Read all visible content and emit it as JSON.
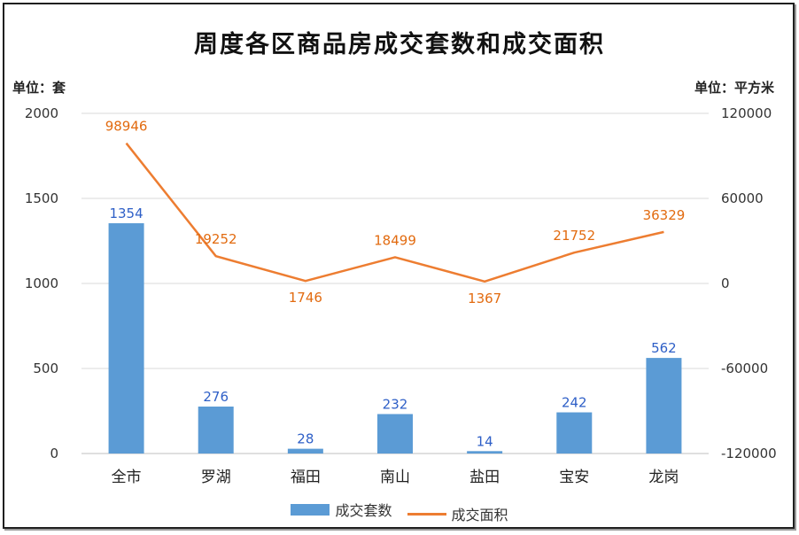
{
  "chart_data": {
    "type": "bar",
    "title": "周度各区商品房成交套数和成交面积",
    "left_unit": "单位：套",
    "right_unit": "单位：平方米",
    "categories": [
      "全市",
      "罗湖",
      "福田",
      "南山",
      "盐田",
      "宝安",
      "龙岗"
    ],
    "series": [
      {
        "name": "成交套数",
        "type": "bar",
        "axis": "left",
        "values": [
          1354,
          276,
          28,
          232,
          14,
          242,
          562
        ],
        "color": "#5b9bd5"
      },
      {
        "name": "成交面积",
        "type": "line",
        "axis": "right",
        "values": [
          98946,
          19252,
          1746,
          18499,
          1367,
          21752,
          36329
        ],
        "color": "#ed7d31"
      }
    ],
    "left_axis": {
      "min": 0,
      "max": 2000,
      "ticks": [
        0,
        500,
        1000,
        1500,
        2000
      ]
    },
    "right_axis": {
      "min": -120000,
      "max": 120000,
      "ticks": [
        -120000,
        -60000,
        0,
        60000,
        120000
      ]
    },
    "grid": true,
    "legend": "bottom"
  }
}
